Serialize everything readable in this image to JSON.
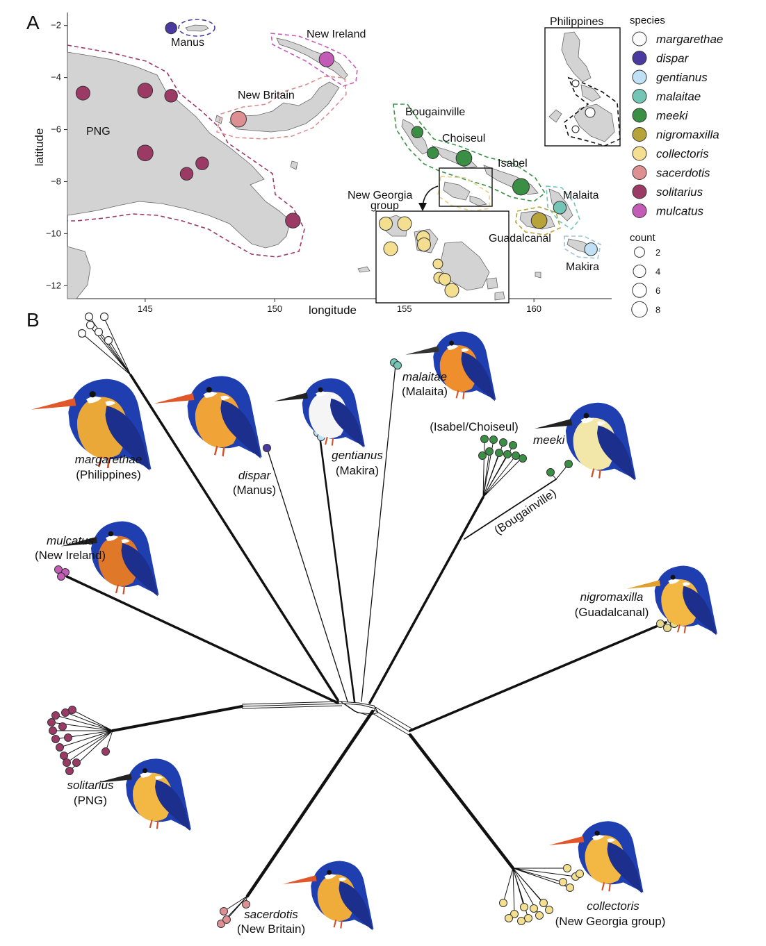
{
  "panels": {
    "a": "A",
    "b": "B"
  },
  "map": {
    "xlabel": "longitude",
    "ylabel": "latitude",
    "xticks": [
      145,
      150,
      155,
      160
    ],
    "yticks": [
      -2,
      -4,
      -6,
      -8,
      -10,
      -12
    ],
    "xlim": [
      142.0,
      163.0
    ],
    "ylim": [
      -12.5,
      -1.5
    ],
    "regions": {
      "png": "PNG",
      "manus": "Manus",
      "new_ireland": "New Ireland",
      "new_britain": "New Britain",
      "bougainville": "Bougainville",
      "choiseul": "Choiseul",
      "isabel": "Isabel",
      "new_georgia": "New Georgia",
      "group": "group",
      "malaita": "Malaita",
      "guadalcanal": "Guadalcanal",
      "makira": "Makira",
      "philippines": "Philippines"
    },
    "points": [
      {
        "lon": 146.0,
        "lat": -2.1,
        "count": 2,
        "species": "dispar"
      },
      {
        "lon": 152.0,
        "lat": -3.3,
        "count": 5,
        "species": "mulcatus"
      },
      {
        "lon": 142.6,
        "lat": -4.6,
        "count": 4,
        "species": "solitarius"
      },
      {
        "lon": 145.0,
        "lat": -4.5,
        "count": 5,
        "species": "solitarius"
      },
      {
        "lon": 146.0,
        "lat": -4.7,
        "count": 3,
        "species": "solitarius"
      },
      {
        "lon": 145.0,
        "lat": -6.9,
        "count": 6,
        "species": "solitarius"
      },
      {
        "lon": 146.6,
        "lat": -7.7,
        "count": 3,
        "species": "solitarius"
      },
      {
        "lon": 147.2,
        "lat": -7.3,
        "count": 3,
        "species": "solitarius"
      },
      {
        "lon": 150.7,
        "lat": -9.5,
        "count": 5,
        "species": "solitarius"
      },
      {
        "lon": 148.6,
        "lat": -5.6,
        "count": 6,
        "species": "sacerdotis"
      },
      {
        "lon": 155.5,
        "lat": -6.1,
        "count": 2,
        "species": "meeki"
      },
      {
        "lon": 156.1,
        "lat": -6.9,
        "count": 2,
        "species": "meeki"
      },
      {
        "lon": 157.3,
        "lat": -7.1,
        "count": 6,
        "species": "meeki"
      },
      {
        "lon": 159.5,
        "lat": -8.2,
        "count": 7,
        "species": "meeki"
      },
      {
        "lon": 161.0,
        "lat": -9.0,
        "count": 3,
        "species": "malaitae"
      },
      {
        "lon": 160.2,
        "lat": -9.5,
        "count": 6,
        "species": "nigromaxilla"
      },
      {
        "lon": 162.2,
        "lat": -10.6,
        "count": 3,
        "species": "gentianus"
      }
    ]
  },
  "legend": {
    "species_title": "species",
    "species": [
      {
        "name": "margarethae",
        "color": "#ffffff"
      },
      {
        "name": "dispar",
        "color": "#4a3aa0"
      },
      {
        "name": "gentianus",
        "color": "#bfe0f5"
      },
      {
        "name": "malaitae",
        "color": "#73c6b5"
      },
      {
        "name": "meeki",
        "color": "#3a8f45"
      },
      {
        "name": "nigromaxilla",
        "color": "#b8a33a"
      },
      {
        "name": "collectoris",
        "color": "#f3df8f"
      },
      {
        "name": "sacerdotis",
        "color": "#de8f91"
      },
      {
        "name": "solitarius",
        "color": "#9c3a66"
      },
      {
        "name": "mulcatus",
        "color": "#c35cb6"
      }
    ],
    "count_title": "count",
    "counts": [
      2,
      4,
      6,
      8
    ]
  },
  "tree_labels": {
    "margarethae": "margarethae",
    "philippines": "(Philippines)",
    "dispar": "dispar",
    "manus": "(Manus)",
    "gentianus": "gentianus",
    "makira": "(Makira)",
    "malaitae": "malaitae",
    "malaita": "(Malaita)",
    "meeki": "meeki",
    "isabel_choiseul": "(Isabel/Choiseul)",
    "bougainville": "(Bougainville)",
    "mulcatus": "mulcatus",
    "new_ireland": "(New Ireland)",
    "nigromaxilla": "nigromaxilla",
    "guadalcanal": "(Guadalcanal)",
    "solitarius": "solitarius",
    "png": "(PNG)",
    "sacerdotis": "sacerdotis",
    "new_britain": "(New Britain)",
    "collectoris": "collectoris",
    "new_georgia_group": "(New Georgia group)"
  }
}
